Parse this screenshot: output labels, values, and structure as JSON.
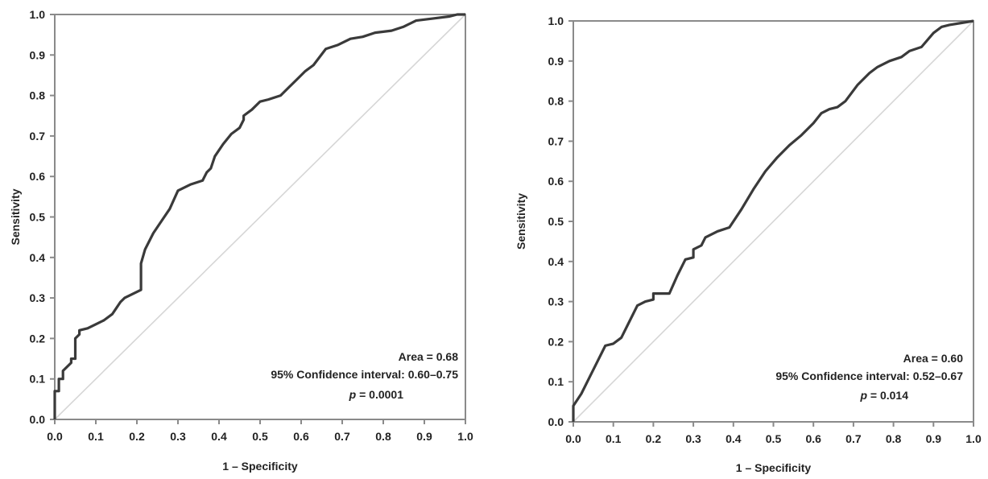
{
  "chart_data": [
    {
      "type": "line",
      "title": "",
      "xlabel": "1 – Specificity",
      "ylabel": "Sensitivity",
      "xlim": [
        0.0,
        1.0
      ],
      "ylim": [
        0.0,
        1.0
      ],
      "x_ticks": [
        "0.0",
        "0.1",
        "0.2",
        "0.3",
        "0.4",
        "0.5",
        "0.6",
        "0.7",
        "0.8",
        "0.9",
        "1.0"
      ],
      "y_ticks": [
        "0.0",
        "0.1",
        "0.2",
        "0.3",
        "0.4",
        "0.5",
        "0.6",
        "0.7",
        "0.8",
        "0.9",
        "1.0"
      ],
      "grid": false,
      "legend": "none",
      "colors": {
        "roc": "#3a3a3a",
        "reference": "#d6d6d6",
        "frame": "#8a8a8a"
      },
      "annotation": {
        "area": "Area = 0.68",
        "ci": "95% Confidence interval: 0.60–0.75",
        "p_symbol": "p",
        "p_value": " = 0.0001"
      },
      "series": [
        {
          "x": [
            0.0,
            0.0,
            0.01,
            0.01,
            0.02,
            0.02,
            0.03,
            0.04,
            0.04,
            0.05,
            0.05,
            0.06,
            0.06,
            0.08,
            0.1,
            0.12,
            0.14,
            0.15,
            0.16,
            0.17,
            0.19,
            0.21,
            0.21,
            0.22,
            0.24,
            0.26,
            0.28,
            0.3,
            0.31,
            0.33,
            0.36,
            0.37,
            0.38,
            0.39,
            0.41,
            0.43,
            0.45,
            0.46,
            0.46,
            0.48,
            0.5,
            0.52,
            0.55,
            0.57,
            0.59,
            0.61,
            0.63,
            0.66,
            0.69,
            0.72,
            0.75,
            0.78,
            0.82,
            0.85,
            0.88,
            0.92,
            0.96,
            0.98,
            1.0
          ],
          "y": [
            0.0,
            0.07,
            0.07,
            0.1,
            0.1,
            0.12,
            0.13,
            0.14,
            0.15,
            0.15,
            0.2,
            0.21,
            0.22,
            0.225,
            0.235,
            0.245,
            0.26,
            0.275,
            0.29,
            0.3,
            0.31,
            0.32,
            0.385,
            0.42,
            0.46,
            0.49,
            0.52,
            0.565,
            0.57,
            0.58,
            0.59,
            0.61,
            0.62,
            0.65,
            0.68,
            0.705,
            0.72,
            0.74,
            0.75,
            0.765,
            0.785,
            0.79,
            0.8,
            0.82,
            0.84,
            0.86,
            0.875,
            0.915,
            0.925,
            0.94,
            0.945,
            0.955,
            0.96,
            0.97,
            0.985,
            0.99,
            0.995,
            1.0,
            1.0
          ]
        }
      ]
    },
    {
      "type": "line",
      "title": "",
      "xlabel": "1 – Specificity",
      "ylabel": "Sensitivity",
      "xlim": [
        0.0,
        1.0
      ],
      "ylim": [
        0.0,
        1.0
      ],
      "x_ticks": [
        "0.0",
        "0.1",
        "0.2",
        "0.3",
        "0.4",
        "0.5",
        "0.6",
        "0.7",
        "0.8",
        "0.9",
        "1.0"
      ],
      "y_ticks": [
        "0.0",
        "0.1",
        "0.2",
        "0.3",
        "0.4",
        "0.5",
        "0.6",
        "0.7",
        "0.8",
        "0.9",
        "1.0"
      ],
      "grid": false,
      "legend": "none",
      "colors": {
        "roc": "#3a3a3a",
        "reference": "#d6d6d6",
        "frame": "#8a8a8a"
      },
      "annotation": {
        "area": "Area = 0.60",
        "ci": "95% Confidence interval: 0.52–0.67",
        "p_symbol": "p",
        "p_value": " = 0.014"
      },
      "series": [
        {
          "x": [
            0.0,
            0.0,
            0.02,
            0.04,
            0.06,
            0.08,
            0.1,
            0.12,
            0.14,
            0.16,
            0.18,
            0.2,
            0.2,
            0.24,
            0.26,
            0.28,
            0.3,
            0.3,
            0.32,
            0.33,
            0.34,
            0.36,
            0.39,
            0.42,
            0.45,
            0.48,
            0.51,
            0.54,
            0.57,
            0.6,
            0.62,
            0.64,
            0.66,
            0.68,
            0.71,
            0.74,
            0.76,
            0.79,
            0.82,
            0.84,
            0.87,
            0.9,
            0.92,
            0.94,
            0.97,
            1.0
          ],
          "y": [
            0.0,
            0.04,
            0.07,
            0.11,
            0.15,
            0.19,
            0.195,
            0.21,
            0.25,
            0.29,
            0.3,
            0.305,
            0.32,
            0.32,
            0.365,
            0.405,
            0.41,
            0.43,
            0.44,
            0.46,
            0.465,
            0.475,
            0.485,
            0.53,
            0.58,
            0.625,
            0.66,
            0.69,
            0.715,
            0.745,
            0.77,
            0.78,
            0.785,
            0.8,
            0.84,
            0.87,
            0.885,
            0.9,
            0.91,
            0.925,
            0.935,
            0.97,
            0.985,
            0.99,
            0.995,
            1.0
          ]
        }
      ]
    }
  ]
}
